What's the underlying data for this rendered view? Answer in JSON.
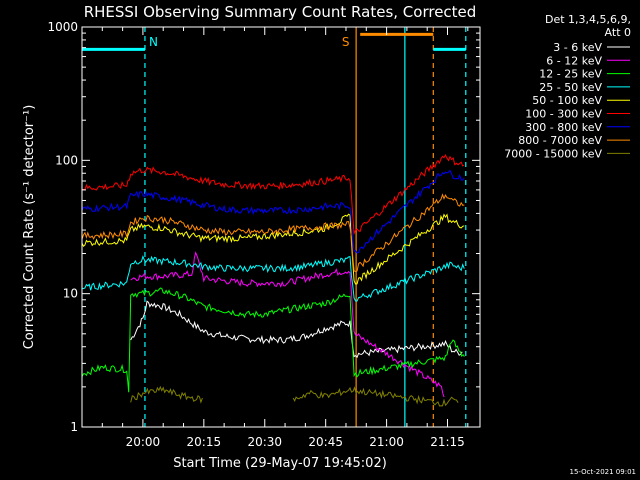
{
  "chart_data": {
    "type": "line",
    "title": "RHESSI Observing Summary Count Rates, Corrected",
    "xlabel": "Start Time (29-May-07 19:45:02)",
    "ylabel": "Corrected Count Rate (s⁻¹ detector⁻¹)",
    "yscale": "log",
    "ylim": [
      1,
      1000
    ],
    "xlim_minutes_after_start": [
      0,
      98
    ],
    "x_tick_labels": [
      "20:00",
      "20:15",
      "20:30",
      "20:45",
      "21:00",
      "21:15"
    ],
    "x_tick_minutes": [
      15,
      30,
      45,
      60,
      75,
      90
    ],
    "y_tick_labels": [
      "1",
      "10",
      "100",
      "1000"
    ],
    "y_tick_values": [
      1,
      10,
      100,
      1000
    ],
    "legend_header": [
      "Det 1,3,4,5,6,9,",
      "Att 0"
    ],
    "legend_placement": "right",
    "timestamp": "15-Oct-2021 09:01",
    "annotations": [
      {
        "text": "N",
        "color": "#00ffff"
      },
      {
        "text": "S",
        "color": "#ff8c00"
      }
    ],
    "segments": [
      {
        "name": "night",
        "x0": 0,
        "x1": 15.5,
        "y": 680,
        "color": "#00ffff"
      },
      {
        "name": "saa",
        "x0": 68.5,
        "x1": 86.5,
        "y": 880,
        "color": "#ff8c00"
      },
      {
        "name": "night2",
        "x0": 86.5,
        "x1": 94.5,
        "y": 680,
        "color": "#00ffff"
      }
    ],
    "vlines": [
      {
        "x": 15.5,
        "color": "#00ffff",
        "style": "dashed"
      },
      {
        "x": 67.5,
        "color": "#ff8c00",
        "style": "solid"
      },
      {
        "x": 79.5,
        "color": "#00ffff",
        "style": "solid"
      },
      {
        "x": 86.5,
        "color": "#ff8c00",
        "style": "dashed"
      },
      {
        "x": 94.5,
        "color": "#00ffff",
        "style": "dashed"
      }
    ],
    "series": [
      {
        "name": "3 - 6 keV",
        "color": "#ffffff",
        "x": [
          11.5,
          12,
          15,
          16,
          20,
          24,
          27,
          30,
          35,
          40,
          45,
          50,
          55,
          60,
          64.5,
          66,
          67,
          89.5,
          91,
          92.5,
          94
        ],
        "y": [
          null,
          4.5,
          6.5,
          8.5,
          8,
          7,
          6,
          5.2,
          4.8,
          4.6,
          4.5,
          4.5,
          4.8,
          5.5,
          6,
          6,
          3.5,
          4.2,
          3.8,
          3.6,
          3.7
        ]
      },
      {
        "name": "6 - 12 keV",
        "color": "#ff00ff",
        "x": [
          0,
          5,
          11,
          12,
          15,
          20,
          27,
          28,
          30,
          35,
          40,
          45,
          50,
          55,
          60,
          66,
          67,
          88.5,
          89.5
        ],
        "y": [
          null,
          null,
          null,
          13,
          13.5,
          13.5,
          14,
          20,
          13,
          12.5,
          12,
          12,
          12,
          13,
          14,
          15,
          5,
          2,
          1.5
        ]
      },
      {
        "name": "12 - 25 keV",
        "color": "#00ff00",
        "x": [
          0,
          5,
          11,
          11.5,
          12,
          15,
          20,
          25,
          30,
          35,
          40,
          45,
          50,
          55,
          60,
          66,
          67,
          89.5,
          91,
          93.5,
          94.5
        ],
        "y": [
          2.5,
          2.8,
          2.7,
          1.8,
          10,
          10,
          10.5,
          9.5,
          8,
          7.5,
          7,
          7,
          7.5,
          8,
          8.5,
          10,
          2.5,
          3.3,
          4.5,
          3.5,
          3.5
        ]
      },
      {
        "name": "25 - 50 keV",
        "color": "#00ffff",
        "x": [
          0,
          5,
          11,
          12,
          15,
          20,
          25,
          30,
          35,
          40,
          45,
          50,
          55,
          60,
          66,
          67,
          89.5,
          91,
          93,
          94.5
        ],
        "y": [
          11,
          11.5,
          12,
          17,
          18,
          17.5,
          17,
          16,
          15.5,
          15.5,
          15.5,
          15.5,
          16,
          17,
          18,
          9,
          16,
          16.5,
          15.5,
          16
        ]
      },
      {
        "name": "50 - 100 keV",
        "color": "#ffff00",
        "x": [
          0,
          5,
          11,
          12,
          15,
          20,
          25,
          30,
          35,
          40,
          45,
          50,
          55,
          60,
          66,
          67,
          89.5,
          91,
          93,
          94.5
        ],
        "y": [
          24,
          24.5,
          25,
          30,
          32,
          31,
          28,
          26,
          26,
          26,
          27,
          28,
          29,
          31,
          38,
          12,
          38,
          35,
          33,
          32
        ]
      },
      {
        "name": "100 - 300 keV",
        "color": "#ff0000",
        "x": [
          0,
          5,
          11,
          12,
          15,
          20,
          25,
          30,
          35,
          40,
          45,
          50,
          55,
          60,
          66,
          67,
          89.5,
          91,
          93,
          94.5
        ],
        "y": [
          62,
          63,
          65,
          80,
          85,
          82,
          76,
          70,
          66,
          65,
          64,
          65,
          67,
          70,
          74,
          28,
          110,
          100,
          95,
          90
        ]
      },
      {
        "name": "300 - 800 keV",
        "color": "#0000ff",
        "x": [
          0,
          5,
          11,
          12,
          15,
          20,
          25,
          30,
          35,
          40,
          45,
          50,
          55,
          60,
          66,
          67,
          89.5,
          91,
          93,
          94.5
        ],
        "y": [
          43,
          44,
          45,
          54,
          56,
          53,
          50,
          46,
          43,
          42,
          42,
          42,
          43,
          45,
          46,
          20,
          85,
          78,
          75,
          72
        ]
      },
      {
        "name": "800 - 7000 keV",
        "color": "#ff8c00",
        "x": [
          0,
          5,
          11,
          12,
          15,
          20,
          25,
          30,
          35,
          40,
          45,
          50,
          55,
          60,
          66,
          67,
          89.5,
          91,
          93,
          94.5
        ],
        "y": [
          27,
          27.5,
          28,
          34,
          37,
          36,
          33,
          30,
          29,
          29,
          29,
          30,
          31,
          32,
          33,
          15,
          55,
          50,
          47,
          45
        ]
      },
      {
        "name": "7000 - 15000 keV",
        "color": "#808000",
        "x": [
          11.5,
          12,
          15,
          20,
          25,
          30,
          31,
          52,
          56,
          60,
          66,
          89.5,
          91,
          93
        ],
        "y": [
          null,
          1.6,
          1.8,
          1.9,
          1.7,
          1.6,
          null,
          1.6,
          1.8,
          1.7,
          1.9,
          1.5,
          1.7,
          1.4
        ]
      }
    ]
  }
}
